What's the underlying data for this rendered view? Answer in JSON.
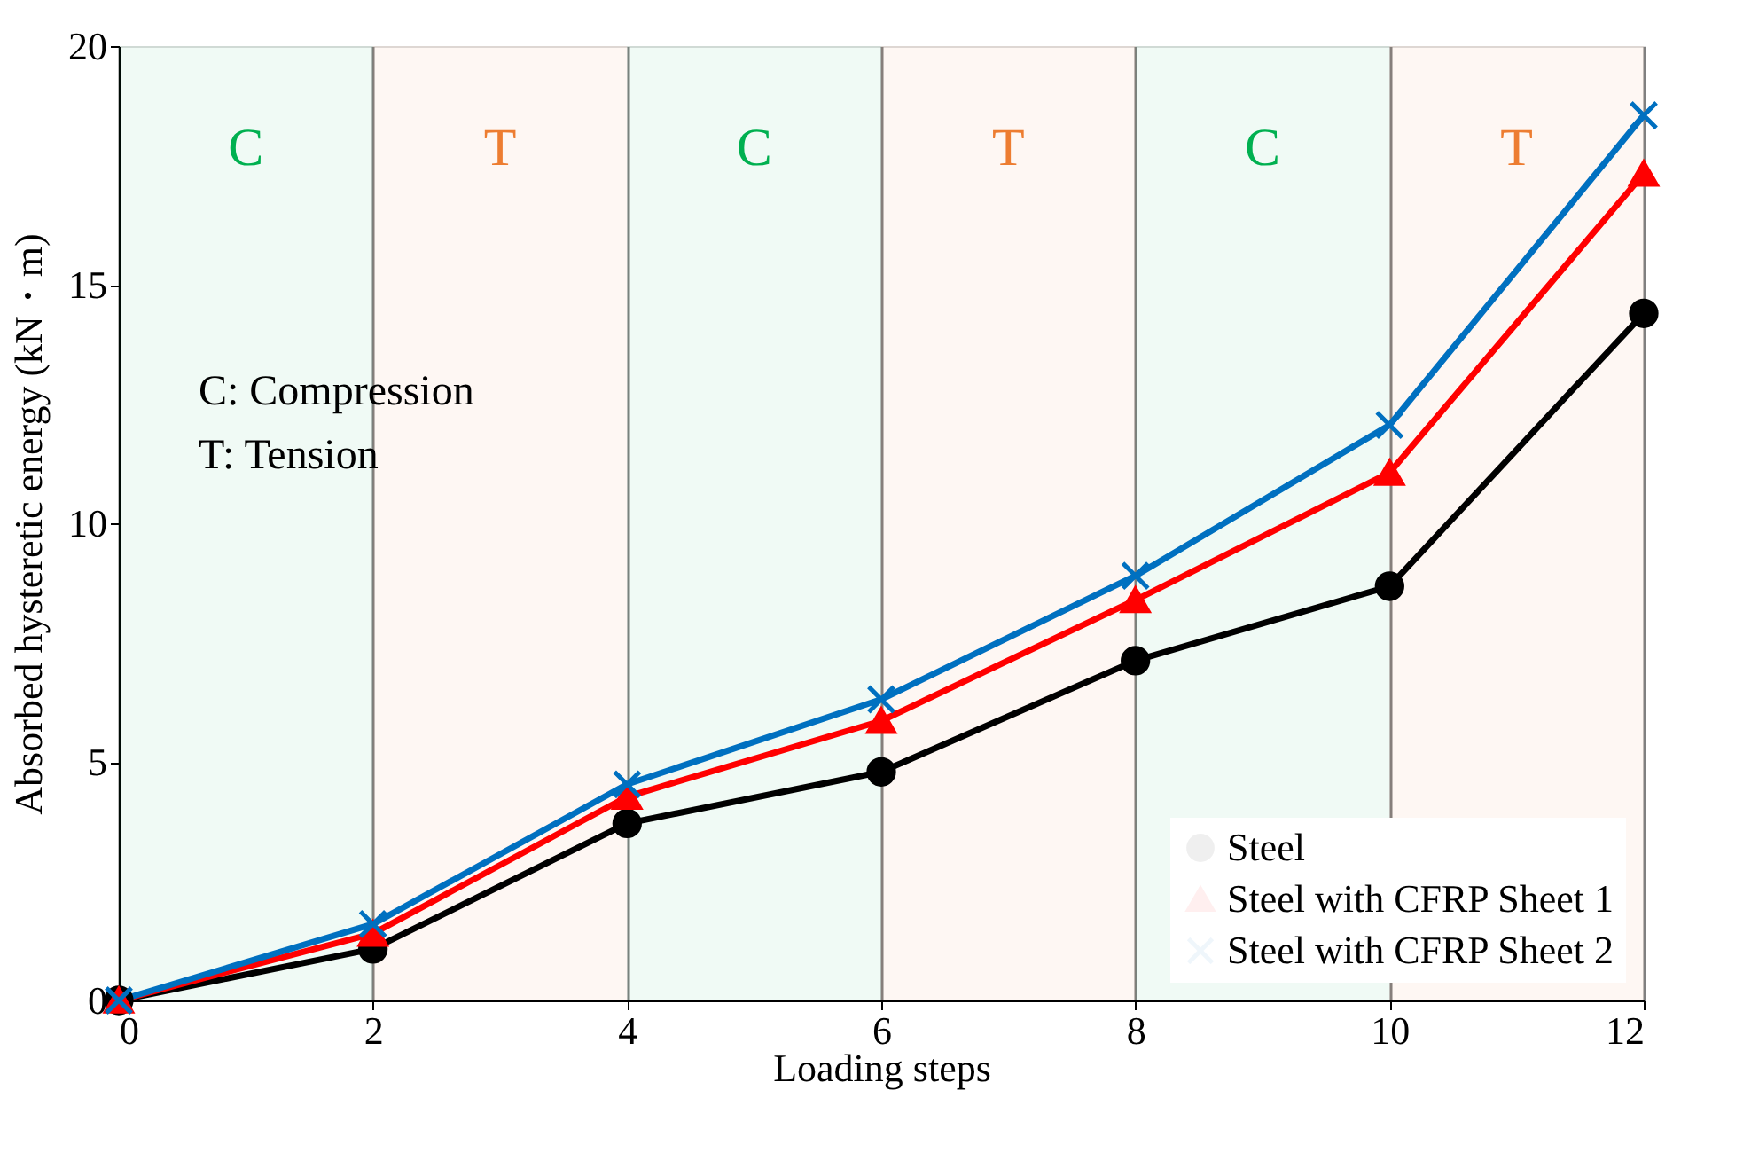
{
  "chart_data": {
    "type": "line",
    "xlabel": "Loading steps",
    "ylabel": "Absorbed hysteretic energy (kN・m)",
    "x": [
      0,
      2,
      4,
      6,
      8,
      10,
      12
    ],
    "series": [
      {
        "name": "Steel",
        "color": "#000000",
        "marker": "circle",
        "values": [
          0,
          1.08,
          3.71,
          4.79,
          7.12,
          8.68,
          14.4
        ]
      },
      {
        "name": "Steel with CFRP Sheet 1",
        "color": "#ff0000",
        "marker": "triangle",
        "values": [
          0,
          1.4,
          4.27,
          5.86,
          8.39,
          11.06,
          17.33
        ]
      },
      {
        "name": "Steel with CFRP Sheet 2",
        "color": "#0070c0",
        "marker": "cross",
        "values": [
          0,
          1.6,
          4.53,
          6.31,
          8.9,
          12.06,
          18.55
        ]
      }
    ],
    "xlim": [
      0,
      12
    ],
    "xticks": [
      0,
      2,
      4,
      6,
      8,
      10,
      12
    ],
    "ylim": [
      0,
      20
    ],
    "yticks": [
      0,
      5,
      10,
      15,
      20
    ],
    "grid": "x",
    "legend": "bottom right",
    "bands": [
      {
        "axis": "x",
        "from": 0,
        "to": 2,
        "label": "C",
        "color": "#00b050"
      },
      {
        "axis": "x",
        "from": 2,
        "to": 4,
        "label": "T",
        "color": "#ed7d31"
      },
      {
        "axis": "x",
        "from": 4,
        "to": 6,
        "label": "C",
        "color": "#00b050"
      },
      {
        "axis": "x",
        "from": 6,
        "to": 8,
        "label": "T",
        "color": "#ed7d31"
      },
      {
        "axis": "x",
        "from": 8,
        "to": 10,
        "label": "C",
        "color": "#00b050"
      },
      {
        "axis": "x",
        "from": 10,
        "to": 12,
        "label": "T",
        "color": "#ed7d31"
      }
    ],
    "annotations": [
      "C: Compression",
      "T: Tension"
    ]
  }
}
